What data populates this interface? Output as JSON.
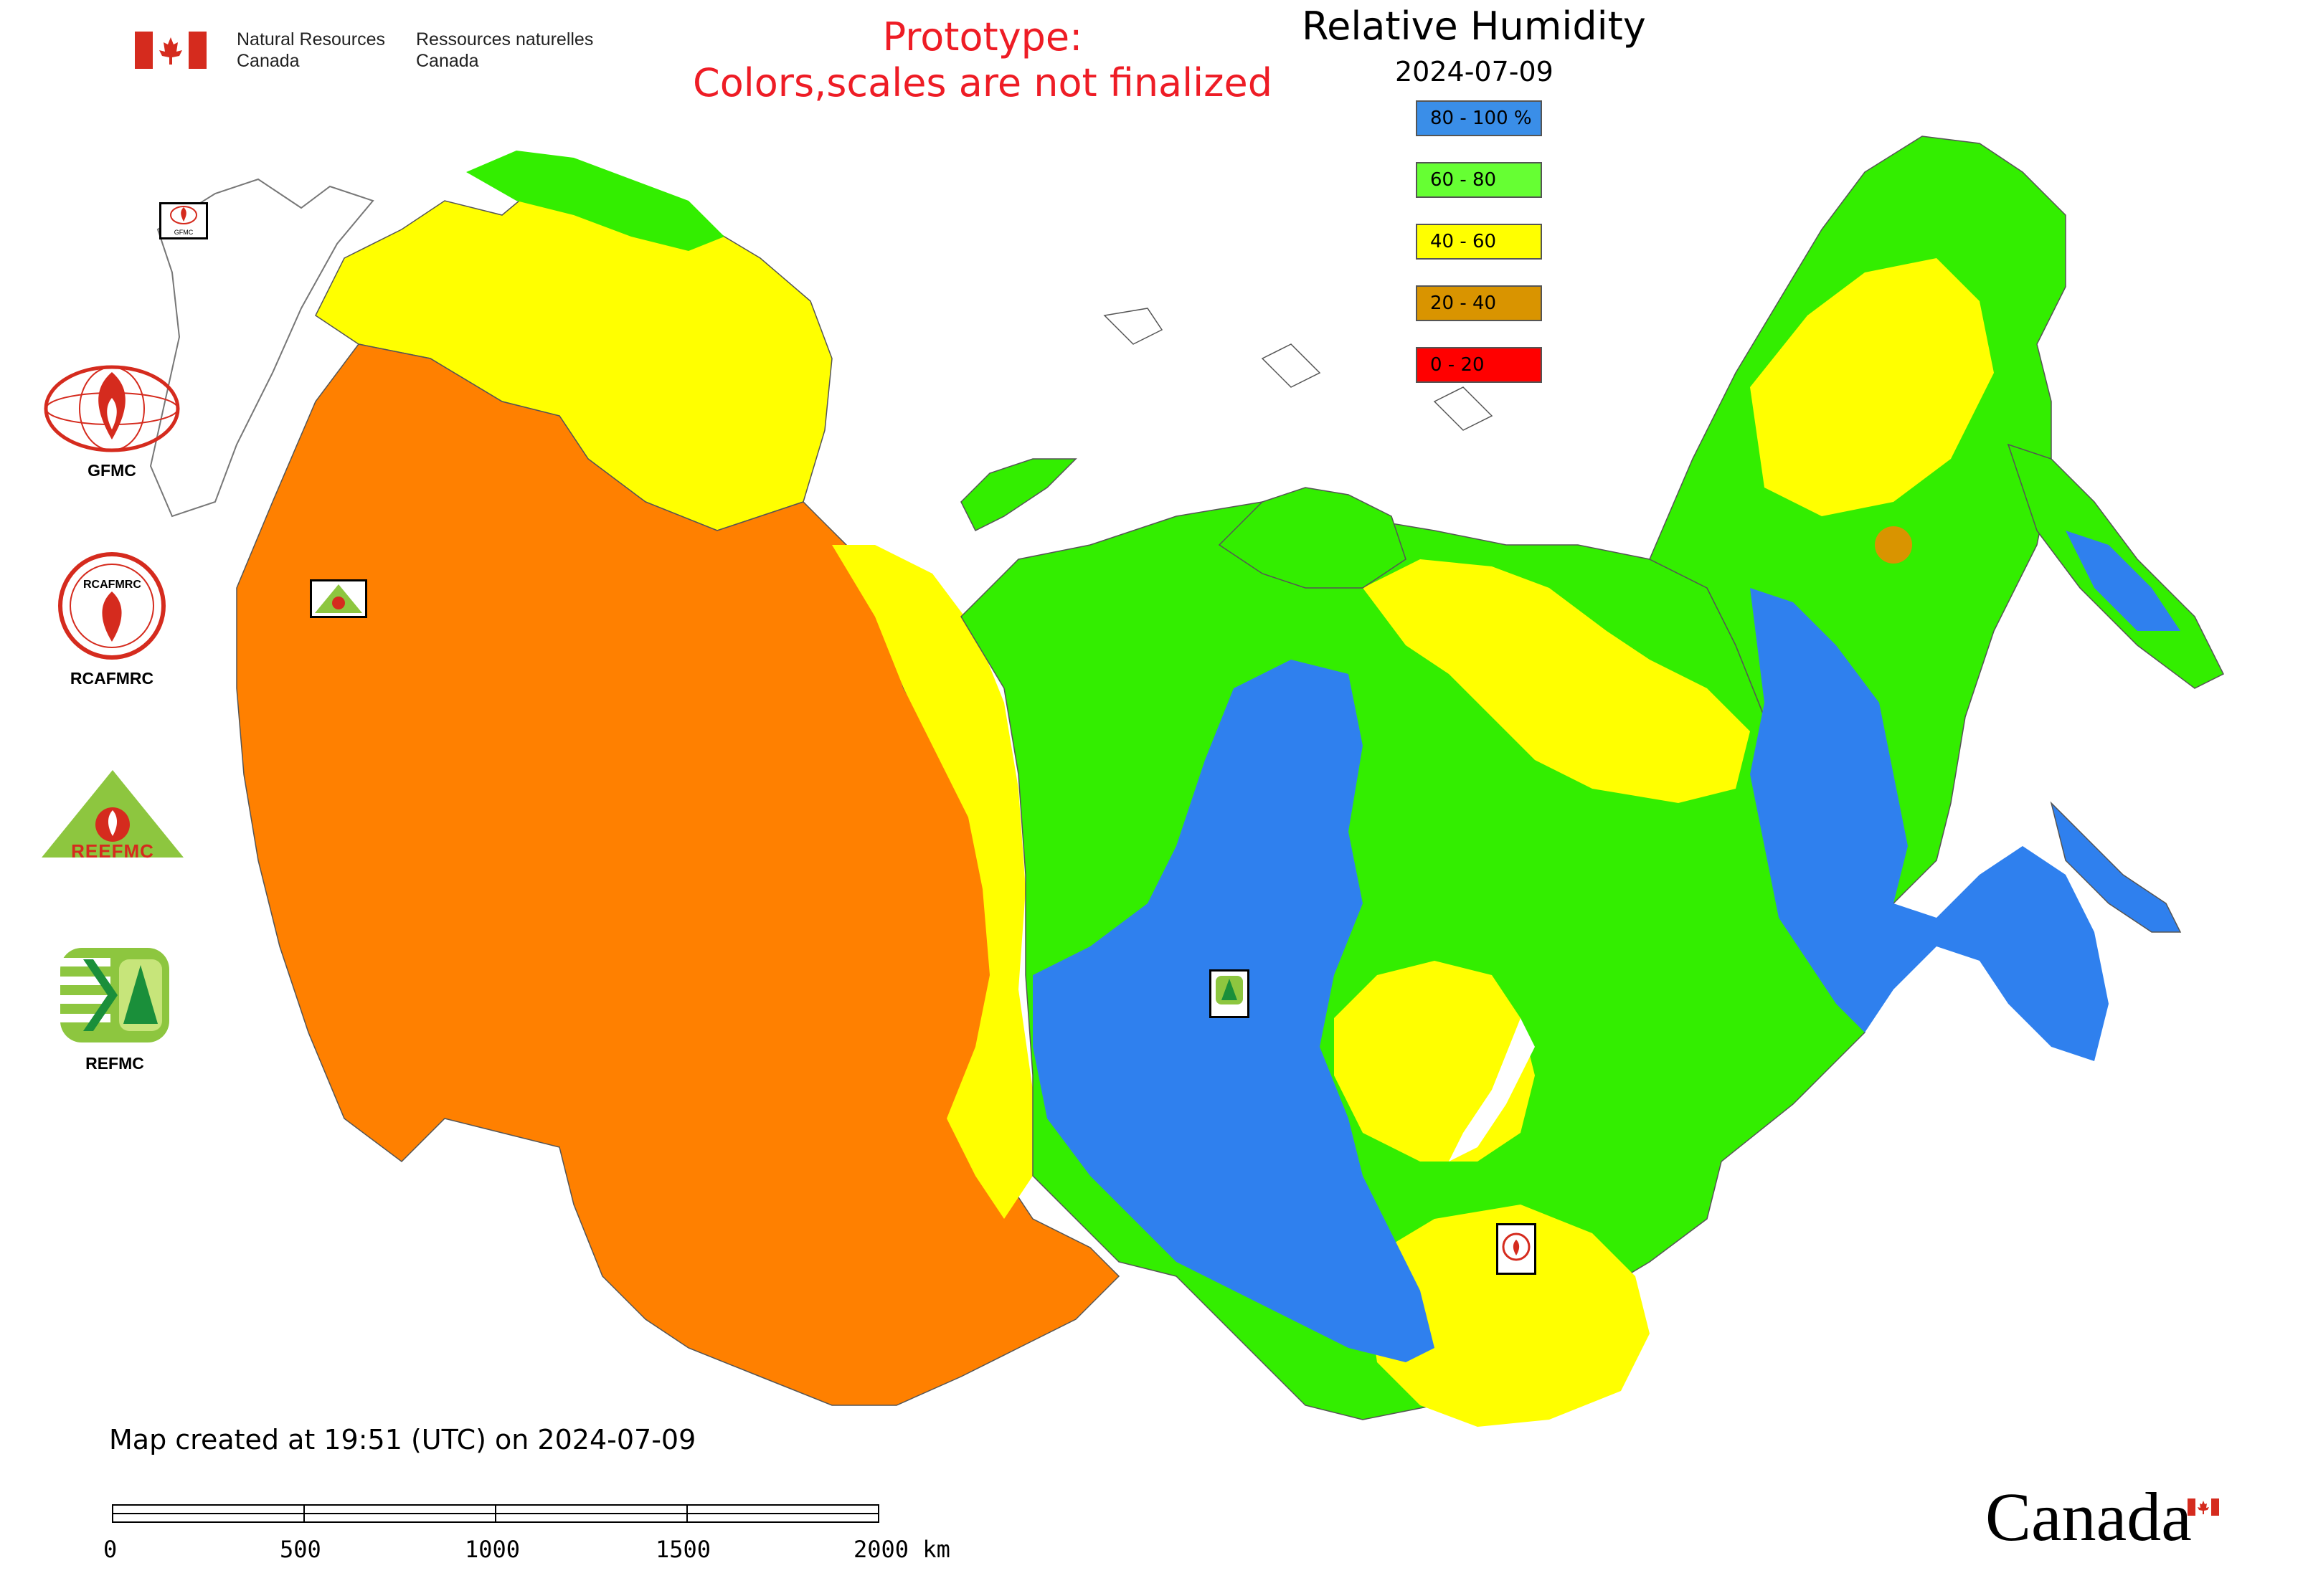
{
  "header": {
    "gov_en_line1": "Natural Resources",
    "gov_en_line2": "Canada",
    "gov_fr_line1": "Ressources naturelles",
    "gov_fr_line2": "Canada",
    "prototype_line1": "Prototype:",
    "prototype_line2": "Colors,scales are not finalized",
    "title": "Relative Humidity",
    "date": "2024-07-09"
  },
  "legend": {
    "items": [
      {
        "label": "80 - 100 %",
        "color": "#3a8ee8"
      },
      {
        "label": "60 - 80",
        "color": "#66ff33"
      },
      {
        "label": "40 - 60",
        "color": "#ffff00"
      },
      {
        "label": "20 - 40",
        "color": "#d99400"
      },
      {
        "label": "0 - 20",
        "color": "#ff0000"
      }
    ]
  },
  "map_colors": {
    "orange_region": "#ff8000",
    "yellow_region": "#ffff00",
    "green_region": "#33ee00",
    "blue_region": "#2f80ee"
  },
  "logos": {
    "gfmc_label": "GFMC",
    "rcafmrc_label": "RCAFMRC",
    "reefmc_label": "REEFMC",
    "reefmc_text": "REEFMC",
    "refmc_label": "REFMC",
    "rcafmrc_badge_text": "RCAFMRC",
    "gfmc_small_text": "GFMC"
  },
  "footer": {
    "created": "Map created at 19:51 (UTC) on 2024-07-09",
    "scale_ticks": [
      "0",
      "500",
      "1000",
      "1500",
      "2000 km"
    ],
    "wordmark": "Canada"
  }
}
